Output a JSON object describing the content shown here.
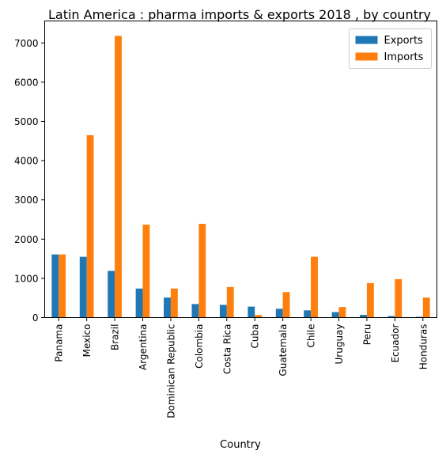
{
  "chart_data": {
    "type": "bar",
    "title": "Latin America : pharma imports & exports 2018 , by country",
    "xlabel": "Country",
    "ylabel": "",
    "ylim": [
      0,
      7560
    ],
    "yticks": [
      0,
      1000,
      2000,
      3000,
      4000,
      5000,
      6000,
      7000
    ],
    "grid": false,
    "legend_position": "top-right",
    "categories": [
      "Panama",
      "Mexico",
      "Brazil",
      "Argentina",
      "Dominican Republic",
      "Colombia",
      "Costa Rica",
      "Cuba",
      "Guatemala",
      "Chile",
      "Uruguay",
      "Peru",
      "Ecuador",
      "Honduras"
    ],
    "series": [
      {
        "name": "Exports",
        "color": "#1f77b4",
        "values": [
          1610,
          1550,
          1190,
          740,
          510,
          345,
          325,
          280,
          225,
          185,
          140,
          70,
          40,
          20
        ]
      },
      {
        "name": "Imports",
        "color": "#ff7f0e",
        "values": [
          1610,
          4650,
          7180,
          2370,
          740,
          2390,
          780,
          65,
          650,
          1550,
          270,
          880,
          980,
          510
        ]
      }
    ]
  }
}
